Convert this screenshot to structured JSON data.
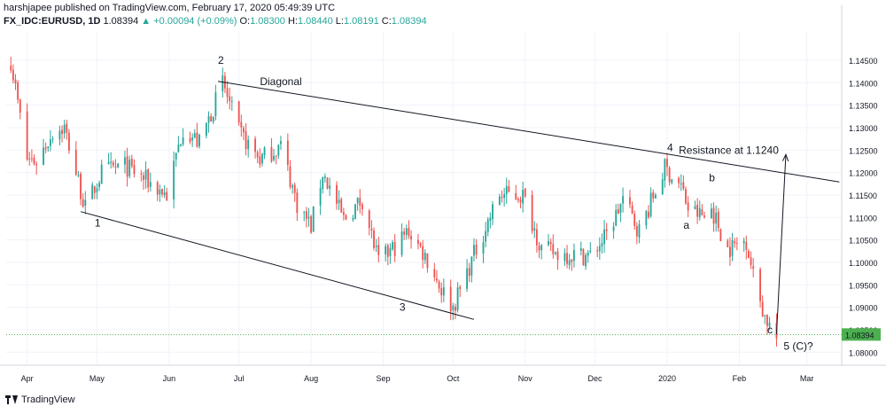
{
  "header": {
    "published": "harshjapee published on TradingView.com, February 17, 2020 05:49:39 UTC",
    "symbol": "FX_IDC:EURUSD, 1D",
    "last": "1.08394",
    "change": "▲ +0.00094 (+0.09%)",
    "o_label": "O:",
    "o_value": "1.08300",
    "h_label": "H:",
    "h_value": "1.08440",
    "l_label": "L:",
    "l_value": "1.08191",
    "c_label": "C:",
    "c_value": "1.08394"
  },
  "footer": {
    "brand": "TradingView"
  },
  "colors": {
    "up": "#26a69a",
    "down": "#ef5350",
    "price_line": "#4caf50",
    "trend": "#131722"
  },
  "chart_data": {
    "type": "candlestick",
    "ylim": [
      1.0771,
      1.1513
    ],
    "y_ticks": [
      "1.08000",
      "1.08500",
      "1.09000",
      "1.09500",
      "1.10000",
      "1.10500",
      "1.11000",
      "1.11500",
      "1.12000",
      "1.12500",
      "1.13000",
      "1.13500",
      "1.14000",
      "1.14500"
    ],
    "x_ticks": [
      {
        "date": "2019-04-01",
        "label": "Apr"
      },
      {
        "date": "2019-05-01",
        "label": "May"
      },
      {
        "date": "2019-06-01",
        "label": "Jun"
      },
      {
        "date": "2019-07-01",
        "label": "Jul"
      },
      {
        "date": "2019-08-01",
        "label": "Aug"
      },
      {
        "date": "2019-09-01",
        "label": "Sep"
      },
      {
        "date": "2019-10-01",
        "label": "Oct"
      },
      {
        "date": "2019-11-01",
        "label": "Nov"
      },
      {
        "date": "2019-12-01",
        "label": "Dec"
      },
      {
        "date": "2020-01-01",
        "label": "2020"
      },
      {
        "date": "2020-02-01",
        "label": "Feb"
      },
      {
        "date": "2020-03-01",
        "label": "Mar"
      }
    ],
    "x_range": [
      "2019-03-23",
      "2020-03-16"
    ],
    "last_price": "1.08394",
    "path": [
      [
        "2019-03-25",
        1.145
      ],
      [
        "2019-04-01",
        1.123
      ],
      [
        "2019-04-05",
        1.1225
      ],
      [
        "2019-04-12",
        1.129
      ],
      [
        "2019-04-17",
        1.13
      ],
      [
        "2019-04-26",
        1.112
      ],
      [
        "2019-05-03",
        1.12
      ],
      [
        "2019-05-13",
        1.1215
      ],
      [
        "2019-05-23",
        1.118
      ],
      [
        "2019-05-31",
        1.115
      ],
      [
        "2019-06-07",
        1.13
      ],
      [
        "2019-06-14",
        1.1265
      ],
      [
        "2019-06-24",
        1.14
      ],
      [
        "2019-07-01",
        1.129
      ],
      [
        "2019-07-10",
        1.123
      ],
      [
        "2019-07-19",
        1.126
      ],
      [
        "2019-07-26",
        1.113
      ],
      [
        "2019-08-01",
        1.108
      ],
      [
        "2019-08-06",
        1.12
      ],
      [
        "2019-08-15",
        1.1095
      ],
      [
        "2019-08-23",
        1.114
      ],
      [
        "2019-08-30",
        1.1
      ],
      [
        "2019-09-05",
        1.103
      ],
      [
        "2019-09-12",
        1.107
      ],
      [
        "2019-09-19",
        1.1015
      ],
      [
        "2019-09-26",
        1.094
      ],
      [
        "2019-10-01",
        1.09
      ],
      [
        "2019-10-11",
        1.103
      ],
      [
        "2019-10-21",
        1.115
      ],
      [
        "2019-10-31",
        1.115
      ],
      [
        "2019-11-08",
        1.103
      ],
      [
        "2019-11-14",
        1.102
      ],
      [
        "2019-11-29",
        1.1015
      ],
      [
        "2019-12-06",
        1.106
      ],
      [
        "2019-12-13",
        1.114
      ],
      [
        "2019-12-20",
        1.107
      ],
      [
        "2019-12-31",
        1.121
      ],
      [
        "2020-01-07",
        1.117
      ],
      [
        "2020-01-10",
        1.112
      ],
      [
        "2020-01-17",
        1.11
      ],
      [
        "2020-01-20",
        1.112
      ],
      [
        "2020-01-27",
        1.103
      ],
      [
        "2020-02-04",
        1.105
      ],
      [
        "2020-02-07",
        1.097
      ],
      [
        "2020-02-12",
        1.088
      ],
      [
        "2020-02-17",
        1.083
      ]
    ],
    "lines": [
      {
        "name": "upper-trendline",
        "from": [
          "2019-06-22",
          1.1403
        ],
        "to": [
          "2020-03-15",
          1.1179
        ]
      },
      {
        "name": "lower-trendline",
        "from": [
          "2019-04-24",
          1.1113
        ],
        "to": [
          "2019-10-10",
          1.0873
        ]
      },
      {
        "name": "projection-arrow",
        "from": [
          "2020-02-17",
          1.084
        ],
        "to": [
          "2020-02-21",
          1.124
        ],
        "arrow": true
      }
    ],
    "annotations": [
      {
        "label": "1",
        "x": "2019-04-30",
        "y": 1.108
      },
      {
        "label": "2",
        "x": "2019-06-22",
        "y": 1.1442
      },
      {
        "label": "Diagonal",
        "x": "2019-07-10",
        "y": 1.1395
      },
      {
        "label": "3",
        "x": "2019-09-08",
        "y": 1.0892
      },
      {
        "label": "4",
        "x": "2020-01-01",
        "y": 1.1248
      },
      {
        "label": "Resistance at 1.1240",
        "x": "2020-01-06",
        "y": 1.1242
      },
      {
        "label": "b",
        "x": "2020-01-19",
        "y": 1.118
      },
      {
        "label": "a",
        "x": "2020-01-08",
        "y": 1.1075
      },
      {
        "label": "c",
        "x": "2020-02-13",
        "y": 1.0842
      },
      {
        "label": "5 (C)?",
        "x": "2020-02-20",
        "y": 1.0806
      }
    ]
  }
}
